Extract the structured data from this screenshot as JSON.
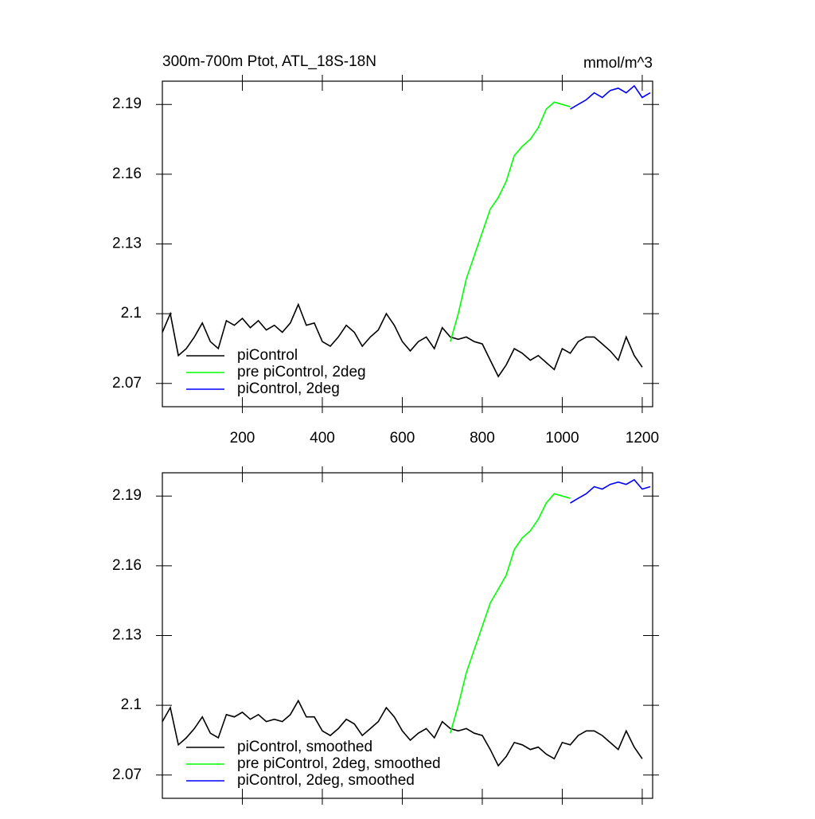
{
  "chart_data": [
    {
      "type": "line",
      "title": "300m-700m Ptot, ATL_18S-18N",
      "units": "mmol/m^3",
      "xlim": [
        0,
        1226
      ],
      "ylim": [
        2.06,
        2.2
      ],
      "xticks": [
        200,
        400,
        600,
        800,
        1000,
        1200
      ],
      "xtick_labels": true,
      "yticks": [
        2.07,
        2.1,
        2.13,
        2.16,
        2.19
      ],
      "legend": "lower left",
      "series": [
        {
          "name": "piControl",
          "color": "#000000",
          "x": [
            0,
            20,
            40,
            60,
            80,
            100,
            120,
            140,
            160,
            180,
            200,
            220,
            240,
            260,
            280,
            300,
            320,
            340,
            360,
            380,
            400,
            420,
            440,
            460,
            480,
            500,
            520,
            540,
            560,
            580,
            600,
            620,
            640,
            660,
            680,
            700,
            720,
            740,
            760,
            780,
            800,
            820,
            840,
            860,
            880,
            900,
            920,
            940,
            960,
            980,
            1000,
            1020,
            1040,
            1060,
            1080,
            1100,
            1120,
            1140,
            1160,
            1180,
            1200
          ],
          "values": [
            2.092,
            2.1,
            2.082,
            2.085,
            2.09,
            2.096,
            2.088,
            2.085,
            2.097,
            2.095,
            2.098,
            2.094,
            2.097,
            2.093,
            2.095,
            2.092,
            2.096,
            2.104,
            2.095,
            2.096,
            2.088,
            2.086,
            2.09,
            2.095,
            2.092,
            2.086,
            2.09,
            2.093,
            2.1,
            2.095,
            2.088,
            2.084,
            2.088,
            2.09,
            2.085,
            2.094,
            2.09,
            2.089,
            2.09,
            2.088,
            2.087,
            2.08,
            2.073,
            2.078,
            2.085,
            2.083,
            2.08,
            2.082,
            2.079,
            2.076,
            2.085,
            2.083,
            2.088,
            2.09,
            2.09,
            2.087,
            2.084,
            2.08,
            2.09,
            2.082,
            2.077
          ]
        },
        {
          "name": "pre piControl, 2deg",
          "color": "#00ff00",
          "x": [
            720,
            740,
            760,
            780,
            800,
            820,
            840,
            860,
            880,
            900,
            920,
            940,
            960,
            980,
            1000,
            1020
          ],
          "values": [
            2.088,
            2.1,
            2.115,
            2.125,
            2.135,
            2.145,
            2.15,
            2.157,
            2.168,
            2.172,
            2.175,
            2.18,
            2.188,
            2.191,
            2.19,
            2.189
          ]
        },
        {
          "name": "piControl, 2deg",
          "color": "#0000ff",
          "x": [
            1020,
            1040,
            1060,
            1080,
            1100,
            1120,
            1140,
            1160,
            1180,
            1200,
            1220
          ],
          "values": [
            2.188,
            2.19,
            2.192,
            2.195,
            2.193,
            2.196,
            2.197,
            2.195,
            2.198,
            2.193,
            2.195
          ]
        }
      ]
    },
    {
      "type": "line",
      "xlim": [
        0,
        1226
      ],
      "ylim": [
        2.06,
        2.2
      ],
      "xticks": [
        200,
        400,
        600,
        800,
        1000,
        1200
      ],
      "xtick_labels": false,
      "yticks": [
        2.07,
        2.1,
        2.13,
        2.16,
        2.19
      ],
      "legend": "lower left",
      "series": [
        {
          "name": "piControl, smoothed",
          "color": "#000000",
          "x": [
            0,
            20,
            40,
            60,
            80,
            100,
            120,
            140,
            160,
            180,
            200,
            220,
            240,
            260,
            280,
            300,
            320,
            340,
            360,
            380,
            400,
            420,
            440,
            460,
            480,
            500,
            520,
            540,
            560,
            580,
            600,
            620,
            640,
            660,
            680,
            700,
            720,
            740,
            760,
            780,
            800,
            820,
            840,
            860,
            880,
            900,
            920,
            940,
            960,
            980,
            1000,
            1020,
            1040,
            1060,
            1080,
            1100,
            1120,
            1140,
            1160,
            1180,
            1200
          ],
          "values": [
            2.093,
            2.099,
            2.083,
            2.086,
            2.09,
            2.095,
            2.088,
            2.086,
            2.096,
            2.095,
            2.097,
            2.094,
            2.096,
            2.093,
            2.094,
            2.093,
            2.096,
            2.102,
            2.095,
            2.095,
            2.089,
            2.087,
            2.09,
            2.094,
            2.092,
            2.087,
            2.09,
            2.093,
            2.099,
            2.095,
            2.089,
            2.085,
            2.088,
            2.09,
            2.086,
            2.093,
            2.09,
            2.089,
            2.09,
            2.088,
            2.087,
            2.081,
            2.074,
            2.078,
            2.084,
            2.083,
            2.081,
            2.082,
            2.079,
            2.077,
            2.084,
            2.083,
            2.087,
            2.089,
            2.089,
            2.087,
            2.084,
            2.081,
            2.089,
            2.082,
            2.077
          ]
        },
        {
          "name": "pre piControl, 2deg, smoothed",
          "color": "#00ff00",
          "x": [
            720,
            740,
            760,
            780,
            800,
            820,
            840,
            860,
            880,
            900,
            920,
            940,
            960,
            980,
            1000,
            1020
          ],
          "values": [
            2.088,
            2.1,
            2.114,
            2.124,
            2.134,
            2.144,
            2.15,
            2.156,
            2.167,
            2.172,
            2.175,
            2.18,
            2.187,
            2.191,
            2.19,
            2.189
          ]
        },
        {
          "name": "piControl, 2deg, smoothed",
          "color": "#0000ff",
          "x": [
            1020,
            1040,
            1060,
            1080,
            1100,
            1120,
            1140,
            1160,
            1180,
            1200,
            1220
          ],
          "values": [
            2.187,
            2.189,
            2.191,
            2.194,
            2.193,
            2.195,
            2.196,
            2.195,
            2.197,
            2.193,
            2.194
          ]
        }
      ]
    }
  ]
}
